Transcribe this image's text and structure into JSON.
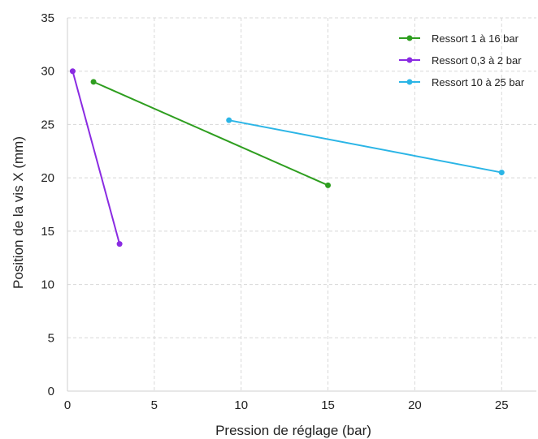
{
  "chart_data": {
    "type": "line",
    "xlabel": "Pression de réglage (bar)",
    "ylabel": "Position de la vis X (mm)",
    "xlim": [
      0,
      27
    ],
    "ylim": [
      0,
      35
    ],
    "xticks": [
      0,
      5,
      10,
      15,
      20,
      25
    ],
    "yticks": [
      0,
      5,
      10,
      15,
      20,
      25,
      30,
      35
    ],
    "grid": true,
    "legend_position": "top-right",
    "series": [
      {
        "name": "Ressort 1 à 16 bar",
        "color": "#2e9e1f",
        "points": [
          [
            1.5,
            29.0
          ],
          [
            15.0,
            19.3
          ]
        ]
      },
      {
        "name": "Ressort 0,3 à 2 bar",
        "color": "#8a2be2",
        "points": [
          [
            0.3,
            30.0
          ],
          [
            3.0,
            13.8
          ]
        ]
      },
      {
        "name": "Ressort 10 à 25 bar",
        "color": "#2bb5e6",
        "points": [
          [
            9.3,
            25.4
          ],
          [
            25.0,
            20.5
          ]
        ]
      }
    ]
  }
}
